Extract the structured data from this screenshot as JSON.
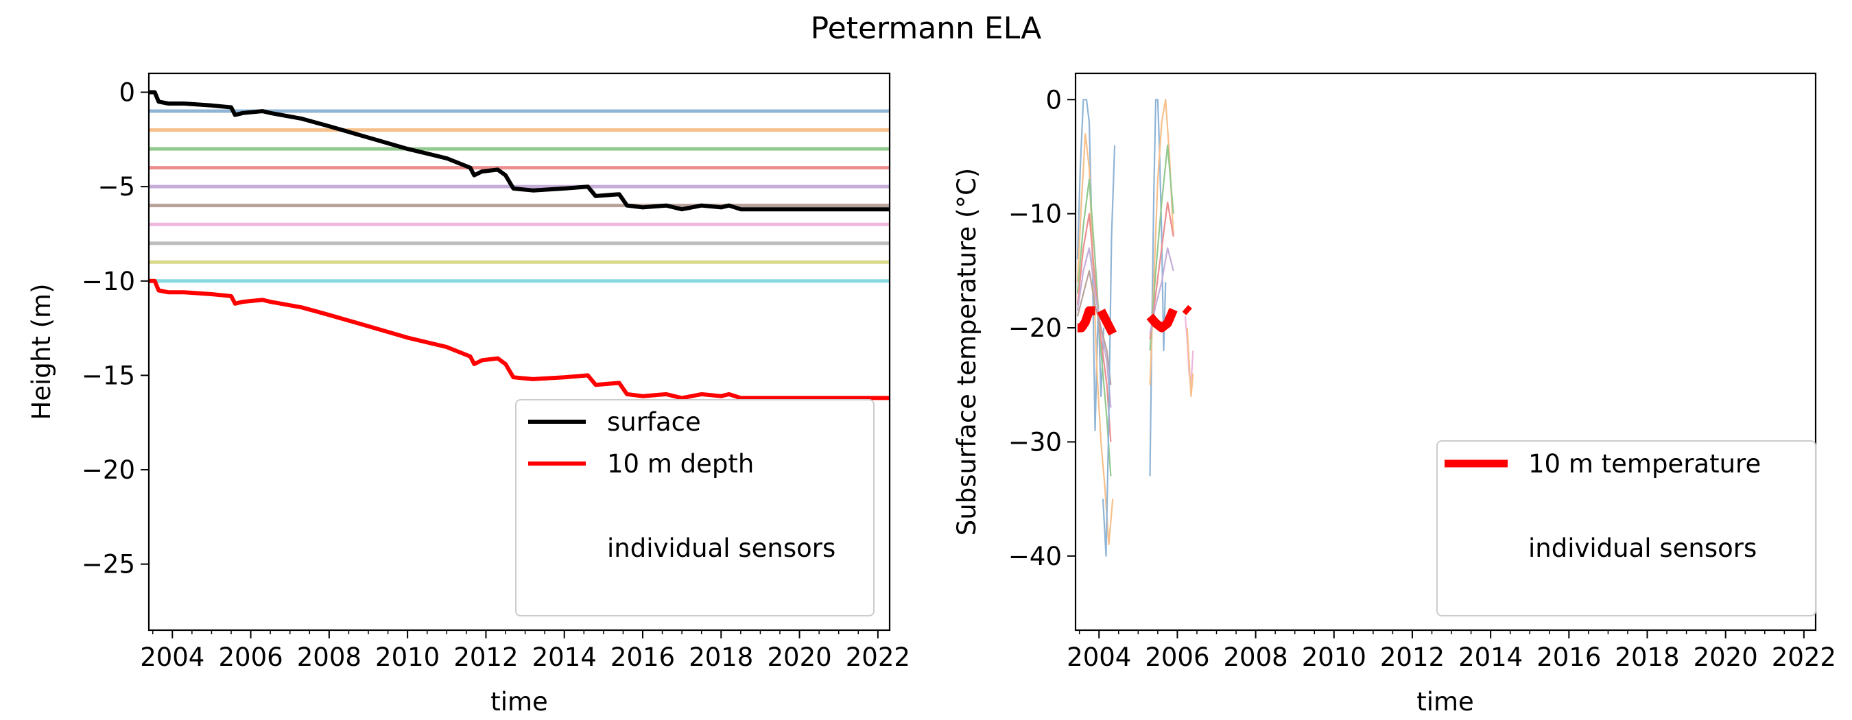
{
  "figure": {
    "title": "Petermann ELA"
  },
  "chart_data": [
    {
      "type": "line",
      "title": "",
      "xlabel": "time",
      "ylabel": "Height (m)",
      "xlim": [
        2003.4,
        2022.3
      ],
      "ylim": [
        -28.5,
        1.0
      ],
      "xticks": [
        2004,
        2006,
        2008,
        2010,
        2012,
        2014,
        2016,
        2018,
        2020,
        2022
      ],
      "xtick_labels": [
        "2004",
        "2006",
        "2008",
        "2010",
        "2012",
        "2014",
        "2016",
        "2018",
        "2020",
        "2022"
      ],
      "yticks": [
        0,
        -5,
        -10,
        -15,
        -20,
        -25
      ],
      "ytick_labels": [
        "0",
        "−5",
        "−10",
        "−15",
        "−20",
        "−25"
      ],
      "grid": false,
      "legend": {
        "position": "lower-right",
        "entries": [
          "surface",
          "10 m depth",
          "individual sensors"
        ]
      },
      "sensor_lines": {
        "y": [
          -1,
          -2,
          -3,
          -4,
          -5,
          -6,
          -7,
          -8,
          -9,
          -10
        ],
        "colors": [
          "#8fb4d6",
          "#f7bf8a",
          "#93c98f",
          "#ec8f8f",
          "#c4aed8",
          "#b9a29c",
          "#efb6de",
          "#bdbdbd",
          "#d9d98a",
          "#86d8de"
        ]
      },
      "series": [
        {
          "name": "surface",
          "color": "#000000",
          "x": [
            2003.4,
            2003.55,
            2003.65,
            2003.9,
            2004.3,
            2005.0,
            2005.5,
            2005.6,
            2005.8,
            2006.3,
            2006.5,
            2007.3,
            2008.0,
            2009.0,
            2010.0,
            2011.0,
            2011.6,
            2011.7,
            2011.9,
            2012.3,
            2012.5,
            2012.7,
            2013.2,
            2014.0,
            2014.6,
            2014.8,
            2015.4,
            2015.6,
            2016.0,
            2016.6,
            2017.0,
            2017.5,
            2018.0,
            2018.2,
            2018.5,
            2020.0,
            2022.3
          ],
          "y": [
            0,
            0,
            -0.5,
            -0.6,
            -0.6,
            -0.7,
            -0.8,
            -1.2,
            -1.1,
            -1.0,
            -1.1,
            -1.4,
            -1.8,
            -2.4,
            -3.0,
            -3.5,
            -4.0,
            -4.4,
            -4.2,
            -4.1,
            -4.4,
            -5.1,
            -5.2,
            -5.1,
            -5.0,
            -5.5,
            -5.4,
            -6.0,
            -6.1,
            -6.0,
            -6.2,
            -6.0,
            -6.1,
            -6.0,
            -6.2,
            -6.2,
            -6.2
          ]
        },
        {
          "name": "10 m depth",
          "color": "#ff0000",
          "x": [
            2003.4,
            2003.55,
            2003.65,
            2003.9,
            2004.3,
            2005.0,
            2005.5,
            2005.6,
            2005.8,
            2006.3,
            2006.5,
            2007.3,
            2008.0,
            2009.0,
            2010.0,
            2011.0,
            2011.6,
            2011.7,
            2011.9,
            2012.3,
            2012.5,
            2012.7,
            2013.2,
            2014.0,
            2014.6,
            2014.8,
            2015.4,
            2015.6,
            2016.0,
            2016.6,
            2017.0,
            2017.5,
            2018.0,
            2018.2,
            2018.5,
            2020.0,
            2022.3
          ],
          "y": [
            -10,
            -10,
            -10.5,
            -10.6,
            -10.6,
            -10.7,
            -10.8,
            -11.2,
            -11.1,
            -11.0,
            -11.1,
            -11.4,
            -11.8,
            -12.4,
            -13.0,
            -13.5,
            -14.0,
            -14.4,
            -14.2,
            -14.1,
            -14.4,
            -15.1,
            -15.2,
            -15.1,
            -15.0,
            -15.5,
            -15.4,
            -16.0,
            -16.1,
            -16.0,
            -16.2,
            -16.0,
            -16.1,
            -16.0,
            -16.2,
            -16.2,
            -16.2
          ]
        }
      ]
    },
    {
      "type": "line",
      "title": "",
      "xlabel": "time",
      "ylabel": "Subsurface temperature (°C)",
      "xlim": [
        2003.4,
        2022.3
      ],
      "ylim": [
        -46.5,
        2.3
      ],
      "xticks": [
        2004,
        2006,
        2008,
        2010,
        2012,
        2014,
        2016,
        2018,
        2020,
        2022
      ],
      "xtick_labels": [
        "2004",
        "2006",
        "2008",
        "2010",
        "2012",
        "2014",
        "2016",
        "2018",
        "2020",
        "2022"
      ],
      "yticks": [
        0,
        -10,
        -20,
        -30,
        -40
      ],
      "ytick_labels": [
        "0",
        "−10",
        "−20",
        "−30",
        "−40"
      ],
      "grid": false,
      "legend": {
        "position": "lower-right",
        "entries": [
          "10 m temperature",
          "individual sensors"
        ]
      },
      "sensor_series": [
        {
          "color": "#8fb4d6",
          "x": [
            2003.45,
            2003.52,
            2003.6,
            2003.68,
            2003.75,
            2003.82,
            2003.9,
            2003.98,
            2004.05,
            2004.12
          ],
          "y": [
            -14,
            -6,
            0,
            0,
            -2,
            -12,
            -29,
            -18,
            -26,
            -20
          ]
        },
        {
          "color": "#f7bf8a",
          "x": [
            2003.45,
            2003.55,
            2003.65,
            2003.75,
            2003.85,
            2003.95,
            2004.05,
            2004.15,
            2004.25,
            2004.35
          ],
          "y": [
            -16,
            -9,
            -3,
            -6,
            -15,
            -24,
            -30,
            -34,
            -39,
            -35
          ]
        },
        {
          "color": "#93c98f",
          "x": [
            2003.45,
            2003.6,
            2003.75,
            2003.9,
            2004.05,
            2004.2,
            2004.3
          ],
          "y": [
            -17,
            -11,
            -7,
            -14,
            -22,
            -28,
            -33
          ]
        },
        {
          "color": "#ec8f8f",
          "x": [
            2003.45,
            2003.6,
            2003.75,
            2003.9,
            2004.05,
            2004.2,
            2004.3
          ],
          "y": [
            -18,
            -13,
            -10,
            -16,
            -21,
            -25,
            -30
          ]
        },
        {
          "color": "#c4aed8",
          "x": [
            2003.45,
            2003.6,
            2003.75,
            2003.9,
            2004.05,
            2004.2,
            2004.3
          ],
          "y": [
            -18.5,
            -15,
            -13,
            -17,
            -20,
            -23,
            -27
          ]
        },
        {
          "color": "#b9a29c",
          "x": [
            2003.45,
            2003.6,
            2003.75,
            2003.9,
            2004.05,
            2004.2,
            2004.3
          ],
          "y": [
            -19,
            -17,
            -15,
            -18,
            -20,
            -22,
            -25
          ]
        },
        {
          "color": "#8fb4d6",
          "x": [
            2004.1,
            2004.18,
            2004.25,
            2004.32,
            2004.4
          ],
          "y": [
            -35,
            -40,
            -28,
            -12,
            -4
          ]
        },
        {
          "color": "#8fb4d6",
          "x": [
            2005.3,
            2005.35,
            2005.4,
            2005.45,
            2005.5,
            2005.55,
            2005.6,
            2005.65,
            2005.7
          ],
          "y": [
            -33,
            -20,
            -8,
            0,
            0,
            -5,
            -12,
            -22,
            -16
          ]
        },
        {
          "color": "#f7bf8a",
          "x": [
            2005.3,
            2005.4,
            2005.5,
            2005.6,
            2005.7,
            2005.8,
            2005.9
          ],
          "y": [
            -25,
            -16,
            -7,
            -2,
            0,
            -5,
            -12
          ]
        },
        {
          "color": "#93c98f",
          "x": [
            2005.3,
            2005.45,
            2005.6,
            2005.75,
            2005.9
          ],
          "y": [
            -22,
            -15,
            -9,
            -4,
            -10
          ]
        },
        {
          "color": "#ec8f8f",
          "x": [
            2005.3,
            2005.45,
            2005.6,
            2005.75,
            2005.9
          ],
          "y": [
            -21,
            -17,
            -13,
            -9,
            -12
          ]
        },
        {
          "color": "#c4aed8",
          "x": [
            2005.3,
            2005.45,
            2005.6,
            2005.75,
            2005.9
          ],
          "y": [
            -20.5,
            -18,
            -16,
            -13,
            -15
          ]
        },
        {
          "color": "#efb6de",
          "x": [
            2006.2,
            2006.25,
            2006.3,
            2006.35,
            2006.4
          ],
          "y": [
            -19,
            -21,
            -24,
            -25,
            -22
          ]
        },
        {
          "color": "#f7bf8a",
          "x": [
            2006.25,
            2006.3,
            2006.35,
            2006.4
          ],
          "y": [
            -20,
            -23,
            -26,
            -24
          ]
        }
      ],
      "series": [
        {
          "name": "10 m temperature",
          "color": "#ff0000",
          "segments": [
            {
              "x": [
                2003.45,
                2003.55,
                2003.65,
                2003.75,
                2003.9
              ],
              "y": [
                -20,
                -20,
                -19.5,
                -18.5,
                -18.5
              ]
            },
            {
              "x": [
                2004.05,
                2004.2,
                2004.35
              ],
              "y": [
                -18.5,
                -19.5,
                -20.5
              ]
            },
            {
              "x": [
                2005.3,
                2005.45,
                2005.6,
                2005.75,
                2005.9
              ],
              "y": [
                -19,
                -19.6,
                -20,
                -19.6,
                -18.4
              ]
            },
            {
              "x": [
                2006.2,
                2006.3
              ],
              "y": [
                -18.3,
                -18.6
              ]
            }
          ]
        }
      ]
    }
  ]
}
